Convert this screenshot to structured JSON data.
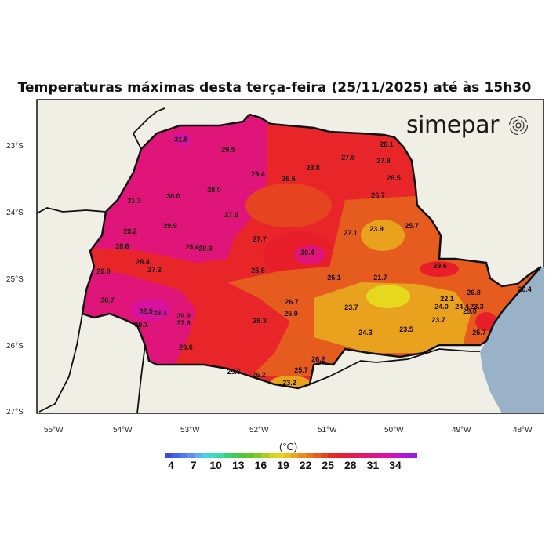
{
  "title": "Temperaturas máximas desta terça-feira (25/11/2025) até às 15h30",
  "logo": {
    "text": "simepar",
    "icon": "radar-waves-icon"
  },
  "axes": {
    "longitude_labels": [
      "55°W",
      "54°W",
      "53°W",
      "52°W",
      "51°W",
      "50°W",
      "49°W",
      "48°W"
    ],
    "latitude_labels": [
      "23°S",
      "24°S",
      "25°S",
      "26°S",
      "27°S"
    ]
  },
  "colorbar": {
    "unit": "(°C)",
    "tick_labels": [
      "4",
      "7",
      "10",
      "13",
      "16",
      "19",
      "22",
      "25",
      "28",
      "31",
      "34"
    ],
    "colors": [
      "#3b4be0",
      "#4563e6",
      "#4f7ae9",
      "#5a93ec",
      "#5fb0ef",
      "#49cfe6",
      "#3fd9c9",
      "#3ed8a4",
      "#3fd27c",
      "#44cc52",
      "#4dc837",
      "#5fc92a",
      "#7fcb26",
      "#a6d01f",
      "#cfd51e",
      "#e6d51e",
      "#e8bf1e",
      "#e8a81e",
      "#e88f1e",
      "#e8761e",
      "#e65c1e",
      "#e64420",
      "#e82a24",
      "#e81e2a",
      "#e61e3a",
      "#e41a50",
      "#e21866",
      "#e0157a",
      "#de1390",
      "#dc12a6",
      "#d412bc",
      "#c414cc",
      "#a818d6",
      "#9a1ae0"
    ]
  },
  "colors": {
    "background": "#efefe6",
    "ocean": "#9ab2c8",
    "base": "#e8262a",
    "hot": "#e0157a",
    "hotter": "#d812a0",
    "warm": "#e65c1e",
    "mild": "#e8a21e",
    "cool": "#e6d81e"
  },
  "stations": [
    "31.5",
    "29.5",
    "29.4",
    "26.6",
    "28.8",
    "28.1",
    "27.9",
    "27.8",
    "28.5",
    "26.7",
    "28.0",
    "31.3",
    "30.0",
    "27.8",
    "29.2",
    "29.9",
    "27.7",
    "28.6",
    "29.4",
    "28.9",
    "30.4",
    "27.1",
    "23.9",
    "25.7",
    "28.4",
    "27.2",
    "29.9",
    "25.8",
    "26.1",
    "21.7",
    "29.6",
    "30.7",
    "26.7",
    "26.8",
    "26.4",
    "22.1",
    "32.9",
    "29.3",
    "25.0",
    "23.7",
    "24.0",
    "24.4",
    "23.3",
    "29.0",
    "29.9",
    "30.1",
    "27.6",
    "28.3",
    "23.7",
    "23.5",
    "24.3",
    "25.7",
    "29.0",
    "26.2",
    "25.6",
    "26.2",
    "25.7",
    "23.2"
  ]
}
